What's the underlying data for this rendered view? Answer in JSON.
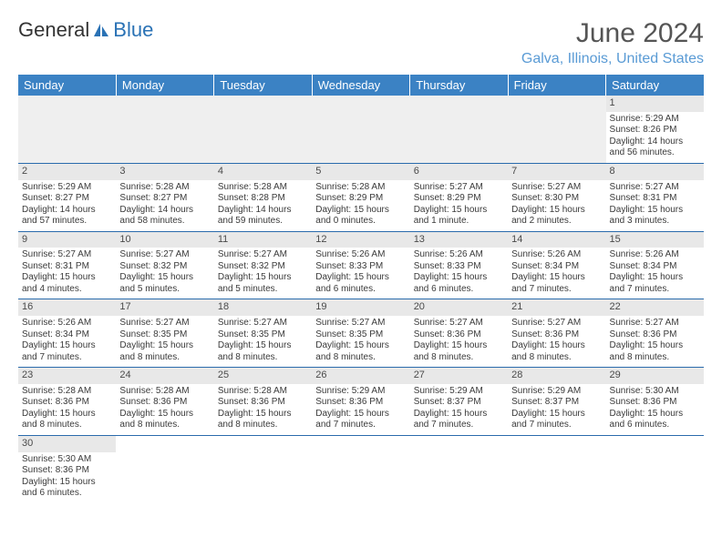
{
  "logo": {
    "text1": "General",
    "text2": "Blue"
  },
  "title": "June 2024",
  "location": "Galva, Illinois, United States",
  "colors": {
    "header_bg": "#3b82c4",
    "header_text": "#ffffff",
    "row_divider": "#2a6bac",
    "daynum_bg": "#e8e8e8",
    "location_color": "#5a9bd5",
    "logo_blue": "#2a72b5"
  },
  "weekdays": [
    "Sunday",
    "Monday",
    "Tuesday",
    "Wednesday",
    "Thursday",
    "Friday",
    "Saturday"
  ],
  "grid": [
    [
      null,
      null,
      null,
      null,
      null,
      null,
      {
        "n": "1",
        "sr": "5:29 AM",
        "ss": "8:26 PM",
        "dl": "14 hours and 56 minutes."
      }
    ],
    [
      {
        "n": "2",
        "sr": "5:29 AM",
        "ss": "8:27 PM",
        "dl": "14 hours and 57 minutes."
      },
      {
        "n": "3",
        "sr": "5:28 AM",
        "ss": "8:27 PM",
        "dl": "14 hours and 58 minutes."
      },
      {
        "n": "4",
        "sr": "5:28 AM",
        "ss": "8:28 PM",
        "dl": "14 hours and 59 minutes."
      },
      {
        "n": "5",
        "sr": "5:28 AM",
        "ss": "8:29 PM",
        "dl": "15 hours and 0 minutes."
      },
      {
        "n": "6",
        "sr": "5:27 AM",
        "ss": "8:29 PM",
        "dl": "15 hours and 1 minute."
      },
      {
        "n": "7",
        "sr": "5:27 AM",
        "ss": "8:30 PM",
        "dl": "15 hours and 2 minutes."
      },
      {
        "n": "8",
        "sr": "5:27 AM",
        "ss": "8:31 PM",
        "dl": "15 hours and 3 minutes."
      }
    ],
    [
      {
        "n": "9",
        "sr": "5:27 AM",
        "ss": "8:31 PM",
        "dl": "15 hours and 4 minutes."
      },
      {
        "n": "10",
        "sr": "5:27 AM",
        "ss": "8:32 PM",
        "dl": "15 hours and 5 minutes."
      },
      {
        "n": "11",
        "sr": "5:27 AM",
        "ss": "8:32 PM",
        "dl": "15 hours and 5 minutes."
      },
      {
        "n": "12",
        "sr": "5:26 AM",
        "ss": "8:33 PM",
        "dl": "15 hours and 6 minutes."
      },
      {
        "n": "13",
        "sr": "5:26 AM",
        "ss": "8:33 PM",
        "dl": "15 hours and 6 minutes."
      },
      {
        "n": "14",
        "sr": "5:26 AM",
        "ss": "8:34 PM",
        "dl": "15 hours and 7 minutes."
      },
      {
        "n": "15",
        "sr": "5:26 AM",
        "ss": "8:34 PM",
        "dl": "15 hours and 7 minutes."
      }
    ],
    [
      {
        "n": "16",
        "sr": "5:26 AM",
        "ss": "8:34 PM",
        "dl": "15 hours and 7 minutes."
      },
      {
        "n": "17",
        "sr": "5:27 AM",
        "ss": "8:35 PM",
        "dl": "15 hours and 8 minutes."
      },
      {
        "n": "18",
        "sr": "5:27 AM",
        "ss": "8:35 PM",
        "dl": "15 hours and 8 minutes."
      },
      {
        "n": "19",
        "sr": "5:27 AM",
        "ss": "8:35 PM",
        "dl": "15 hours and 8 minutes."
      },
      {
        "n": "20",
        "sr": "5:27 AM",
        "ss": "8:36 PM",
        "dl": "15 hours and 8 minutes."
      },
      {
        "n": "21",
        "sr": "5:27 AM",
        "ss": "8:36 PM",
        "dl": "15 hours and 8 minutes."
      },
      {
        "n": "22",
        "sr": "5:27 AM",
        "ss": "8:36 PM",
        "dl": "15 hours and 8 minutes."
      }
    ],
    [
      {
        "n": "23",
        "sr": "5:28 AM",
        "ss": "8:36 PM",
        "dl": "15 hours and 8 minutes."
      },
      {
        "n": "24",
        "sr": "5:28 AM",
        "ss": "8:36 PM",
        "dl": "15 hours and 8 minutes."
      },
      {
        "n": "25",
        "sr": "5:28 AM",
        "ss": "8:36 PM",
        "dl": "15 hours and 8 minutes."
      },
      {
        "n": "26",
        "sr": "5:29 AM",
        "ss": "8:36 PM",
        "dl": "15 hours and 7 minutes."
      },
      {
        "n": "27",
        "sr": "5:29 AM",
        "ss": "8:37 PM",
        "dl": "15 hours and 7 minutes."
      },
      {
        "n": "28",
        "sr": "5:29 AM",
        "ss": "8:37 PM",
        "dl": "15 hours and 7 minutes."
      },
      {
        "n": "29",
        "sr": "5:30 AM",
        "ss": "8:36 PM",
        "dl": "15 hours and 6 minutes."
      }
    ],
    [
      {
        "n": "30",
        "sr": "5:30 AM",
        "ss": "8:36 PM",
        "dl": "15 hours and 6 minutes."
      },
      null,
      null,
      null,
      null,
      null,
      null
    ]
  ],
  "labels": {
    "sunrise": "Sunrise:",
    "sunset": "Sunset:",
    "daylight": "Daylight:"
  }
}
